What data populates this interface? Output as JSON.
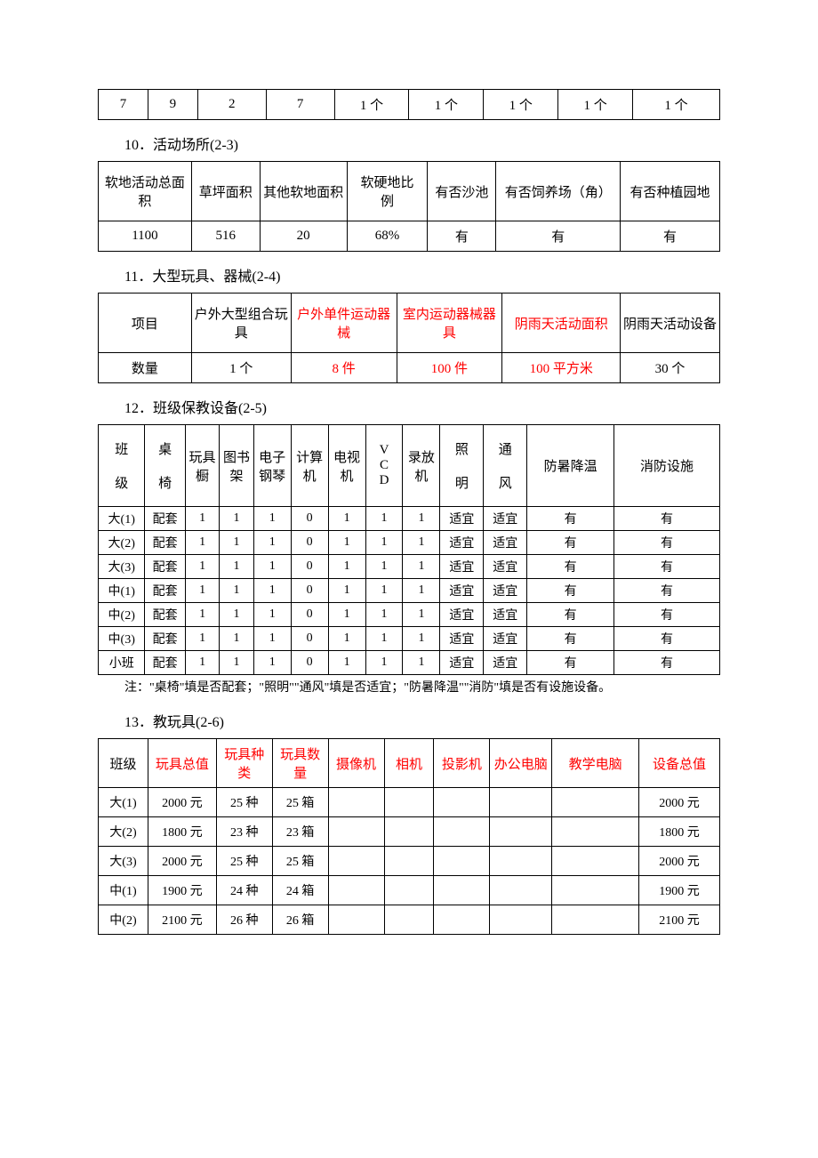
{
  "table9": {
    "row": [
      "7",
      "9",
      "2",
      "7",
      "1 个",
      "1 个",
      "1 个",
      "1 个",
      "1 个"
    ]
  },
  "s10": {
    "title": "10．活动场所(2-3)",
    "headers": [
      "软地活动总面积",
      "草坪面积",
      "其他软地面积",
      "软硬地比　例",
      "有否沙池",
      "有否饲养场（角）",
      "有否种植园地"
    ],
    "row": [
      "1100",
      "516",
      "20",
      "68%",
      "有",
      "有",
      "有"
    ]
  },
  "s11": {
    "title": "11．大型玩具、器械(2-4)",
    "r1": [
      "项目",
      "户外大型组合玩具",
      "户外单件运动器械",
      "室内运动器械器具",
      "阴雨天活动面积",
      "阴雨天活动设备"
    ],
    "r1_red": [
      false,
      false,
      true,
      true,
      true,
      false
    ],
    "r2": [
      "数量",
      "1 个",
      "8 件",
      "100 件",
      "100 平方米",
      "30 个"
    ],
    "r2_red": [
      false,
      false,
      true,
      true,
      true,
      false
    ]
  },
  "s12": {
    "title": "12．班级保教设备(2-5)",
    "headers": [
      "班级",
      "桌椅",
      "玩具橱",
      "图书架",
      "电子钢琴",
      "计算机",
      "电视机",
      "VCD",
      "录放机",
      "照明",
      "通风",
      "防暑降温",
      "消防设施"
    ],
    "rows": [
      [
        "大(1)",
        "配套",
        "1",
        "1",
        "1",
        "0",
        "1",
        "1",
        "1",
        "适宜",
        "适宜",
        "有",
        "有"
      ],
      [
        "大(2)",
        "配套",
        "1",
        "1",
        "1",
        "0",
        "1",
        "1",
        "1",
        "适宜",
        "适宜",
        "有",
        "有"
      ],
      [
        "大(3)",
        "配套",
        "1",
        "1",
        "1",
        "0",
        "1",
        "1",
        "1",
        "适宜",
        "适宜",
        "有",
        "有"
      ],
      [
        "中(1)",
        "配套",
        "1",
        "1",
        "1",
        "0",
        "1",
        "1",
        "1",
        "适宜",
        "适宜",
        "有",
        "有"
      ],
      [
        "中(2)",
        "配套",
        "1",
        "1",
        "1",
        "0",
        "1",
        "1",
        "1",
        "适宜",
        "适宜",
        "有",
        "有"
      ],
      [
        "中(3)",
        "配套",
        "1",
        "1",
        "1",
        "0",
        "1",
        "1",
        "1",
        "适宜",
        "适宜",
        "有",
        "有"
      ],
      [
        "小班",
        "配套",
        "1",
        "1",
        "1",
        "0",
        "1",
        "1",
        "1",
        "适宜",
        "适宜",
        "有",
        "有"
      ]
    ],
    "note": "注：\"桌椅\"填是否配套；\"照明\"\"通风\"填是否适宜；\"防暑降温\"\"消防\"填是否有设施设备。"
  },
  "s13": {
    "title": "13．教玩具(2-6)",
    "headers": [
      "班级",
      "玩具总值",
      "玩具种类",
      "玩具数量",
      "摄像机",
      "相机",
      "投影机",
      "办公电脑",
      "教学电脑",
      "设备总值"
    ],
    "hdr_red": [
      false,
      true,
      true,
      true,
      true,
      true,
      true,
      true,
      true,
      true
    ],
    "rows": [
      [
        "大(1)",
        "2000 元",
        "25 种",
        "25 箱",
        "",
        "",
        "",
        "",
        "",
        "2000 元"
      ],
      [
        "大(2)",
        "1800 元",
        "23 种",
        "23 箱",
        "",
        "",
        "",
        "",
        "",
        "1800 元"
      ],
      [
        "大(3)",
        "2000 元",
        "25 种",
        "25 箱",
        "",
        "",
        "",
        "",
        "",
        "2000 元"
      ],
      [
        "中(1)",
        "1900 元",
        "24 种",
        "24 箱",
        "",
        "",
        "",
        "",
        "",
        "1900 元"
      ],
      [
        "中(2)",
        "2100 元",
        "26 种",
        "26 箱",
        "",
        "",
        "",
        "",
        "",
        "2100 元"
      ]
    ]
  }
}
